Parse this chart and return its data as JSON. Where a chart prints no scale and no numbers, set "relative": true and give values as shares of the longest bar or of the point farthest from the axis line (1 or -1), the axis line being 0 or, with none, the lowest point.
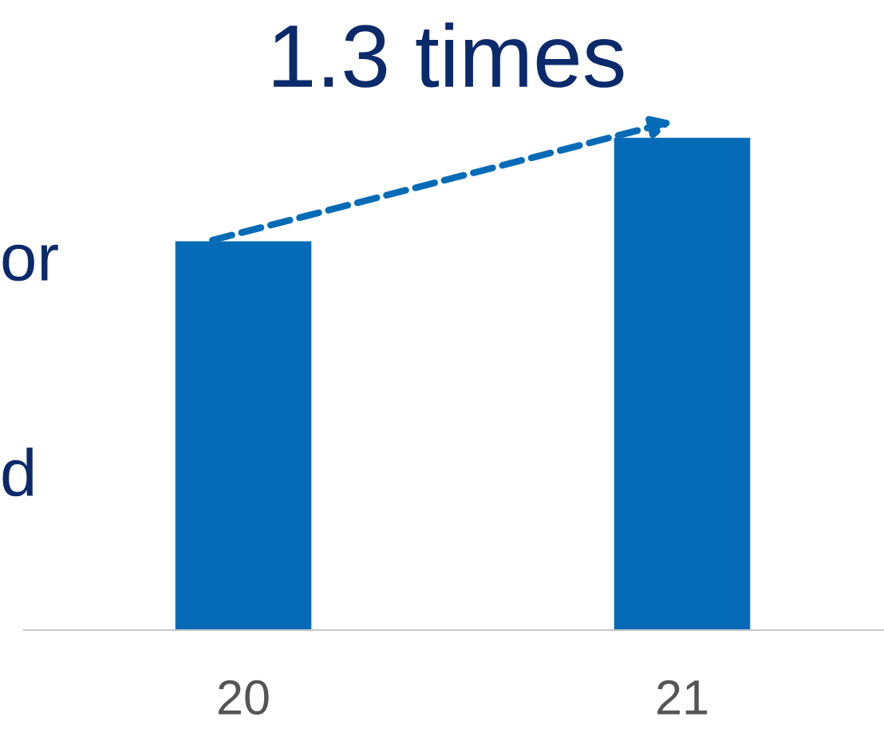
{
  "chart_data": {
    "type": "bar",
    "relative": true,
    "categories": [
      "20",
      "21"
    ],
    "values": [
      0.79,
      1.0
    ],
    "color": "#056bb7",
    "grid": false,
    "legend": false,
    "annotations": [
      "1.3 times",
      "or",
      "d"
    ]
  }
}
